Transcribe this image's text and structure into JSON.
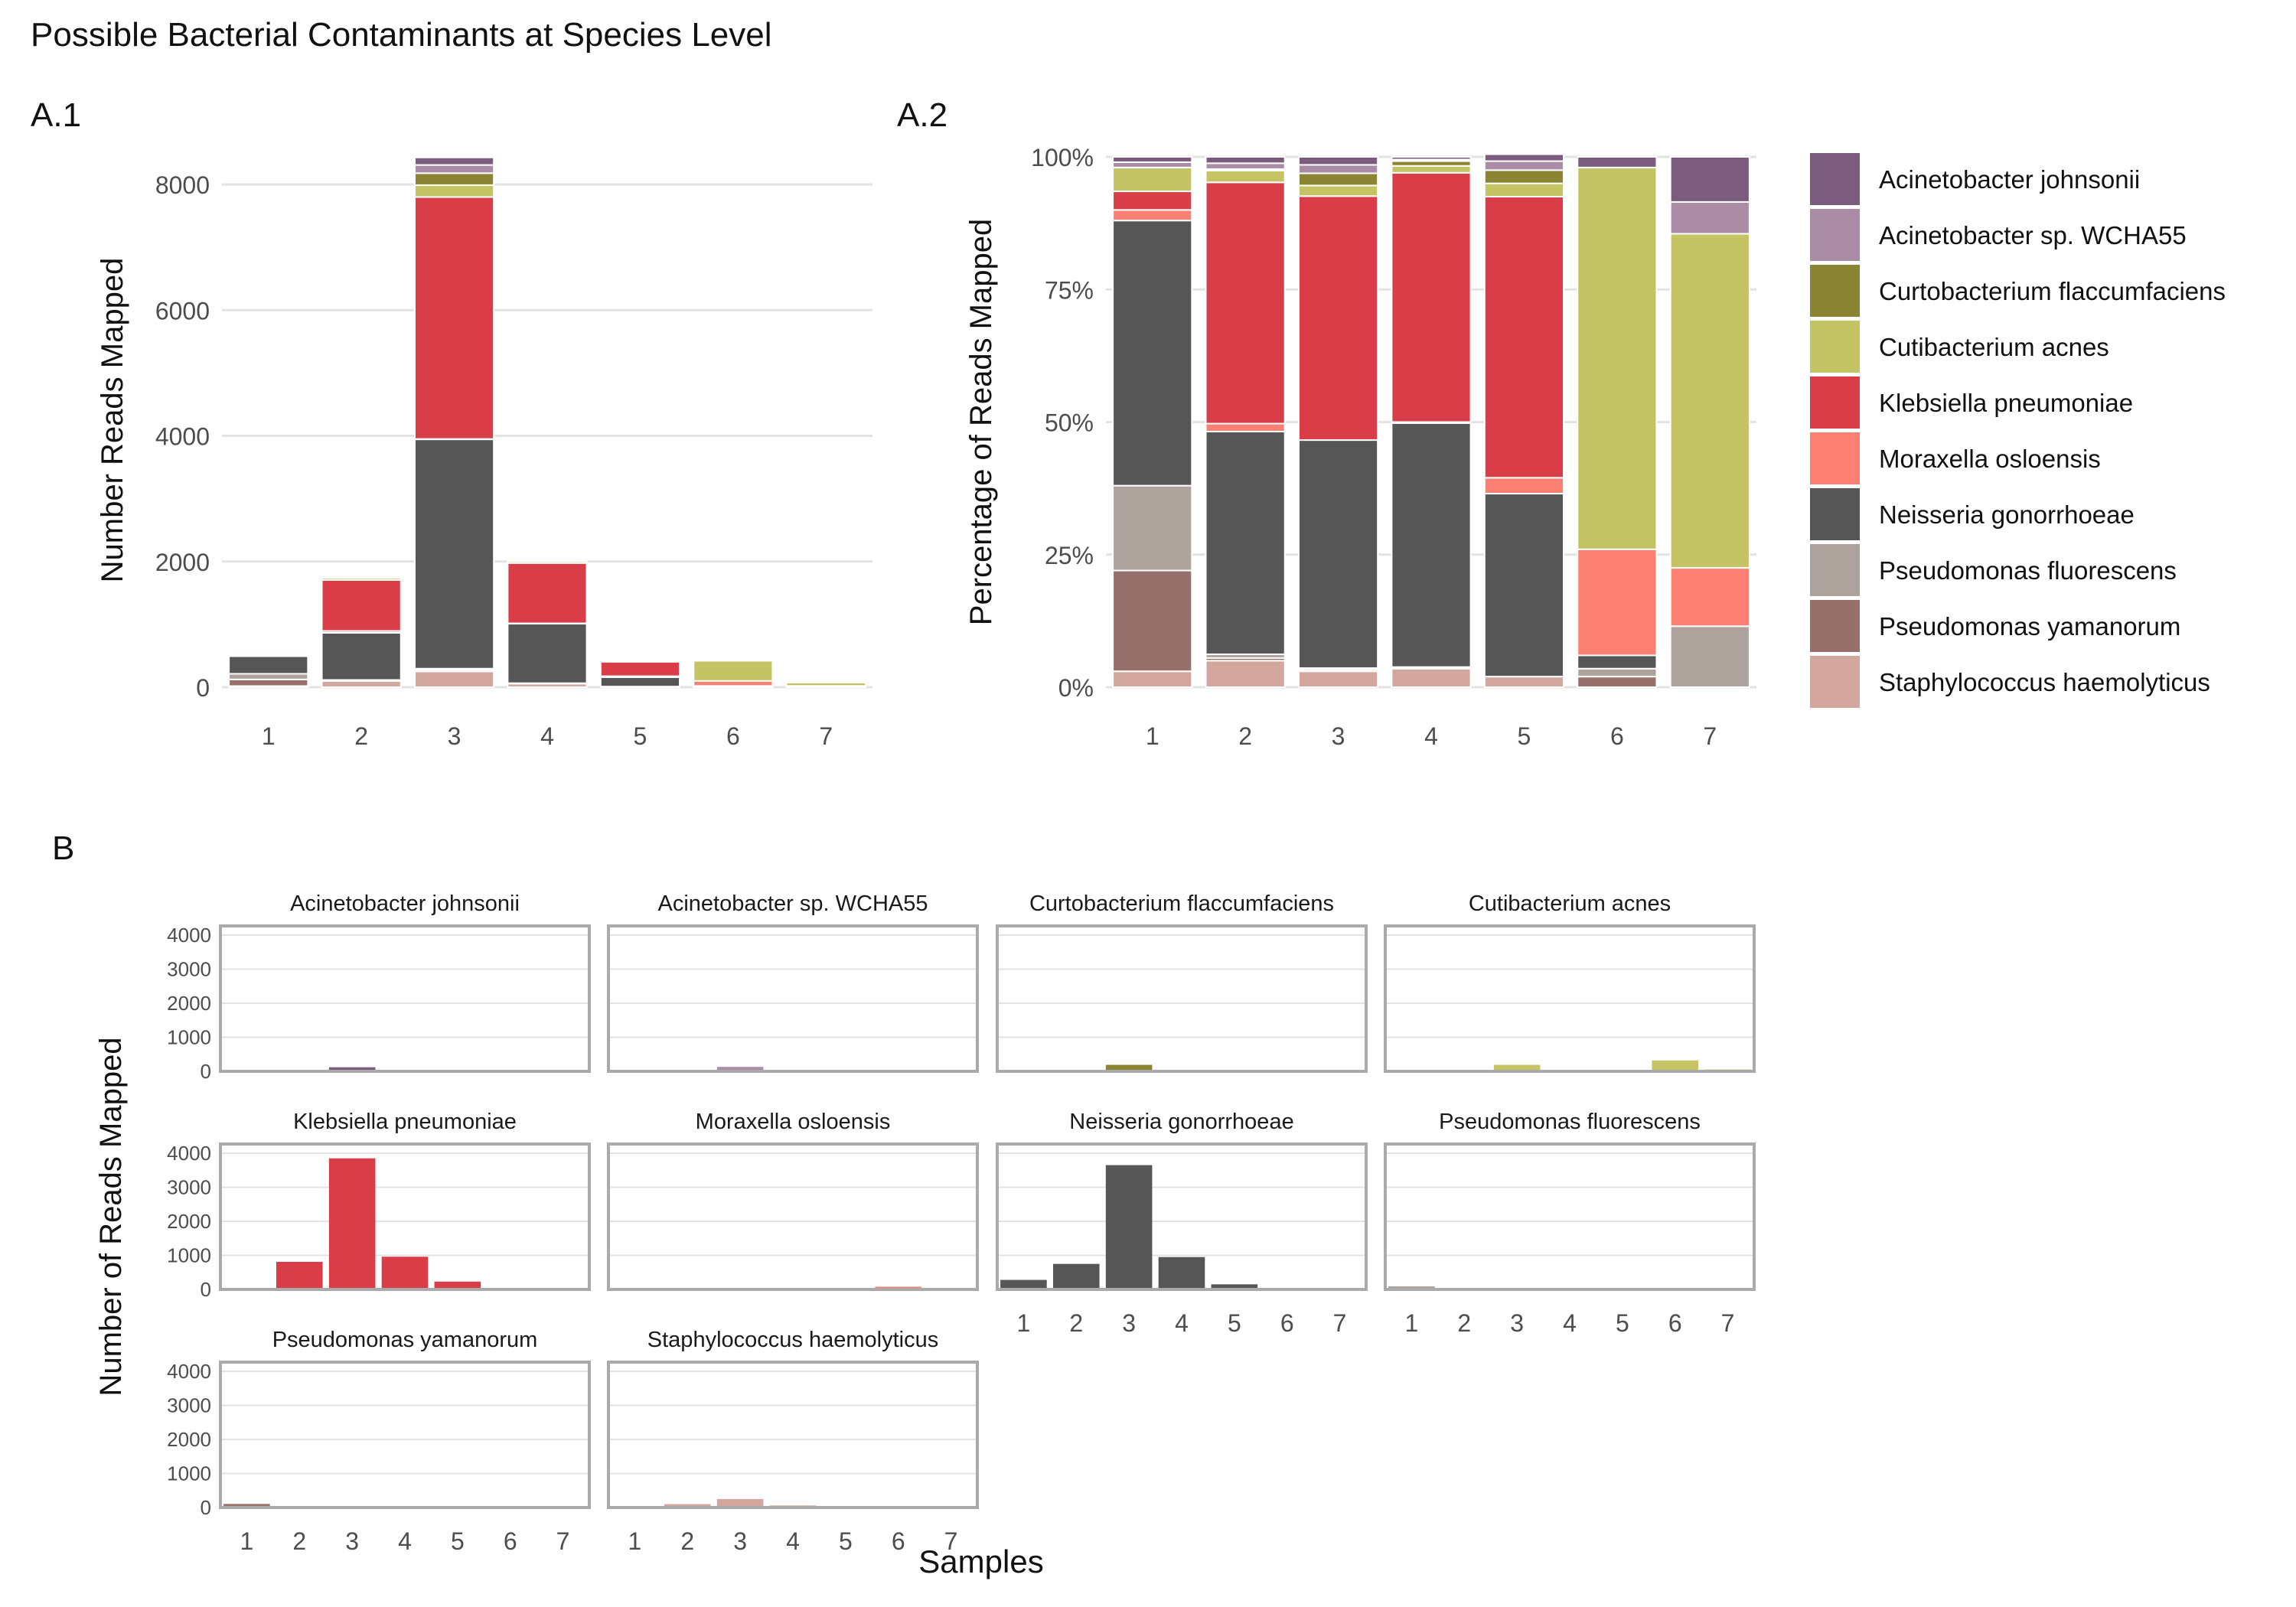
{
  "title": "Possible Bacterial Contaminants at Species Level",
  "panel_labels": {
    "a1": "A.1",
    "a2": "A.2",
    "b": "B"
  },
  "legend": {
    "items": [
      {
        "name": "Acinetobacter johnsonii",
        "color": "#7B5C7E"
      },
      {
        "name": "Acinetobacter sp. WCHA55",
        "color": "#AB8CA6"
      },
      {
        "name": "Curtobacterium flaccumfaciens",
        "color": "#8A8433"
      },
      {
        "name": "Cutibacterium acnes",
        "color": "#C4C464"
      },
      {
        "name": "Klebsiella pneumoniae",
        "color": "#D83D48"
      },
      {
        "name": "Moraxella osloensis",
        "color": "#FB8071"
      },
      {
        "name": "Neisseria gonorrhoeae",
        "color": "#565656"
      },
      {
        "name": "Pseudomonas fluorescens",
        "color": "#ADA29C"
      },
      {
        "name": "Pseudomonas yamanorum",
        "color": "#98706B"
      },
      {
        "name": "Staphylococcus haemolyticus",
        "color": "#D3A69E"
      }
    ]
  },
  "chart_data": [
    {
      "id": "A.1",
      "type": "bar",
      "stacked": true,
      "ylabel": "Number Reads Mapped",
      "xlabel": "",
      "categories": [
        "1",
        "2",
        "3",
        "4",
        "5",
        "6",
        "7"
      ],
      "ylim": [
        0,
        8500
      ],
      "yticks": [
        0,
        2000,
        4000,
        6000,
        8000
      ],
      "ytick_labels": [
        "0",
        "2000",
        "4000",
        "6000",
        "8000"
      ],
      "grid": true,
      "series": [
        {
          "name": "Staphylococcus haemolyticus",
          "values": [
            18,
            100,
            250,
            60,
            10,
            5,
            0
          ]
        },
        {
          "name": "Pseudomonas yamanorum",
          "values": [
            105,
            5,
            20,
            2,
            0,
            5,
            0
          ]
        },
        {
          "name": "Pseudomonas fluorescens",
          "values": [
            90,
            10,
            25,
            2,
            0,
            2,
            10
          ]
        },
        {
          "name": "Neisseria gonorrhoeae",
          "values": [
            280,
            750,
            3650,
            950,
            150,
            8,
            0
          ]
        },
        {
          "name": "Moraxella osloensis",
          "values": [
            12,
            30,
            5,
            2,
            15,
            80,
            10
          ]
        },
        {
          "name": "Klebsiella pneumoniae",
          "values": [
            18,
            810,
            3850,
            960,
            230,
            0,
            0
          ]
        },
        {
          "name": "Cutibacterium acnes",
          "values": [
            25,
            35,
            190,
            30,
            12,
            320,
            55
          ]
        },
        {
          "name": "Curtobacterium flaccumfaciens",
          "values": [
            0,
            5,
            190,
            20,
            10,
            0,
            0
          ]
        },
        {
          "name": "Acinetobacter sp. WCHA55",
          "values": [
            7,
            20,
            130,
            5,
            8,
            0,
            5
          ]
        },
        {
          "name": "Acinetobacter johnsonii",
          "values": [
            8,
            20,
            120,
            5,
            6,
            10,
            8
          ]
        }
      ]
    },
    {
      "id": "A.2",
      "type": "bar",
      "stacked": true,
      "percent": true,
      "ylabel": "Percentage of Reads Mapped",
      "xlabel": "",
      "categories": [
        "1",
        "2",
        "3",
        "4",
        "5",
        "6",
        "7"
      ],
      "ylim": [
        0,
        100
      ],
      "yticks": [
        0,
        25,
        50,
        75,
        100
      ],
      "ytick_labels": [
        "0%",
        "25%",
        "50%",
        "75%",
        "100%"
      ],
      "grid": true,
      "series": [
        {
          "name": "Staphylococcus haemolyticus",
          "values": [
            3,
            5,
            3,
            3.5,
            2,
            0,
            0
          ]
        },
        {
          "name": "Pseudomonas yamanorum",
          "values": [
            19,
            0.5,
            0.3,
            0.2,
            0,
            2,
            0
          ]
        },
        {
          "name": "Pseudomonas fluorescens",
          "values": [
            16,
            0.7,
            0.3,
            0.1,
            0,
            1.5,
            11.5
          ]
        },
        {
          "name": "Neisseria gonorrhoeae",
          "values": [
            50,
            42,
            43,
            46,
            34.5,
            2.5,
            0
          ]
        },
        {
          "name": "Moraxella osloensis",
          "values": [
            2,
            1.5,
            0,
            0.2,
            3,
            20,
            11
          ]
        },
        {
          "name": "Klebsiella pneumoniae",
          "values": [
            3.5,
            45.5,
            46,
            47,
            53,
            0,
            0
          ]
        },
        {
          "name": "Cutibacterium acnes",
          "values": [
            4.5,
            2.2,
            2,
            1.3,
            2.5,
            72,
            63
          ]
        },
        {
          "name": "Curtobacterium flaccumfaciens",
          "values": [
            0,
            0.3,
            2.3,
            0.9,
            2.5,
            0,
            0
          ]
        },
        {
          "name": "Acinetobacter sp. WCHA55",
          "values": [
            1,
            1.1,
            1.6,
            0.3,
            1.7,
            0,
            6
          ]
        },
        {
          "name": "Acinetobacter johnsonii",
          "values": [
            1,
            1.2,
            1.5,
            0.5,
            1.3,
            2,
            8.5
          ]
        }
      ]
    },
    {
      "id": "B",
      "type": "bar",
      "faceted": true,
      "ylabel": "Number of Reads Mapped",
      "xlabel": "Samples",
      "categories": [
        "1",
        "2",
        "3",
        "4",
        "5",
        "6",
        "7"
      ],
      "ylim": [
        0,
        4000
      ],
      "yticks": [
        0,
        1000,
        2000,
        3000,
        4000
      ],
      "ytick_labels": [
        "0",
        "1000",
        "2000",
        "3000",
        "4000"
      ],
      "grid": true,
      "facets": [
        {
          "name": "Acinetobacter johnsonii",
          "values": [
            8,
            20,
            120,
            5,
            6,
            10,
            8
          ]
        },
        {
          "name": "Acinetobacter sp. WCHA55",
          "values": [
            7,
            20,
            130,
            5,
            8,
            0,
            5
          ]
        },
        {
          "name": "Curtobacterium flaccumfaciens",
          "values": [
            0,
            5,
            190,
            20,
            10,
            0,
            0
          ]
        },
        {
          "name": "Cutibacterium acnes",
          "values": [
            25,
            35,
            190,
            30,
            12,
            320,
            55
          ]
        },
        {
          "name": "Klebsiella pneumoniae",
          "values": [
            18,
            810,
            3850,
            960,
            230,
            0,
            0
          ]
        },
        {
          "name": "Moraxella osloensis",
          "values": [
            12,
            30,
            5,
            2,
            15,
            80,
            10
          ]
        },
        {
          "name": "Neisseria gonorrhoeae",
          "values": [
            280,
            750,
            3650,
            950,
            150,
            8,
            0
          ]
        },
        {
          "name": "Pseudomonas fluorescens",
          "values": [
            90,
            10,
            25,
            2,
            0,
            2,
            10
          ]
        },
        {
          "name": "Pseudomonas yamanorum",
          "values": [
            105,
            5,
            20,
            2,
            0,
            5,
            0
          ]
        },
        {
          "name": "Staphylococcus haemolyticus",
          "values": [
            18,
            100,
            250,
            60,
            10,
            5,
            0
          ]
        }
      ]
    }
  ]
}
